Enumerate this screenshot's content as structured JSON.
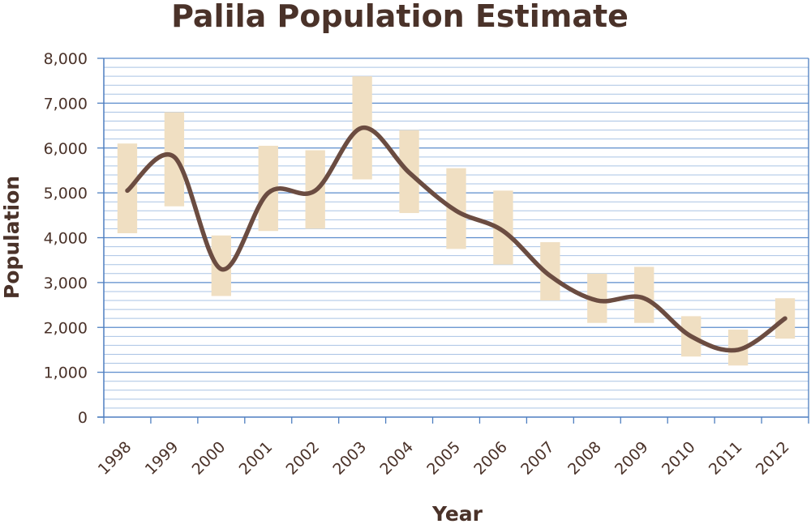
{
  "chart_data": {
    "type": "line",
    "title": "Palila Population Estimate",
    "xlabel": "Year",
    "ylabel": "Population",
    "categories": [
      "1998",
      "1999",
      "2000",
      "2001",
      "2002",
      "2003",
      "2004",
      "2005",
      "2006",
      "2007",
      "2008",
      "2009",
      "2010",
      "2011",
      "2012"
    ],
    "yticks": [
      "0",
      "1,000",
      "2,000",
      "3,000",
      "4,000",
      "5,000",
      "6,000",
      "7,000",
      "8,000"
    ],
    "ylim": [
      0,
      8000
    ],
    "minor_grid_step": 200,
    "grid": true,
    "series": [
      {
        "values": [
          5050,
          5800,
          3300,
          5000,
          5050,
          6450,
          5450,
          4600,
          4150,
          3150,
          2600,
          2650,
          1800,
          1500,
          2200
        ],
        "low": [
          4100,
          4700,
          2700,
          4150,
          4200,
          5300,
          4550,
          3750,
          3400,
          2600,
          2100,
          2100,
          1350,
          1150,
          1750
        ],
        "high": [
          6100,
          6800,
          4050,
          6050,
          5950,
          7600,
          6400,
          5550,
          5050,
          3900,
          3200,
          3350,
          2250,
          1950,
          2650
        ]
      }
    ],
    "colors": {
      "line": "#6b4c41",
      "range_band": "#f0dfc2",
      "major_grid": "#5b8ccc",
      "minor_grid": "#a9c3e4",
      "axis": "#4f7fc0",
      "text": "#4a3229"
    }
  }
}
